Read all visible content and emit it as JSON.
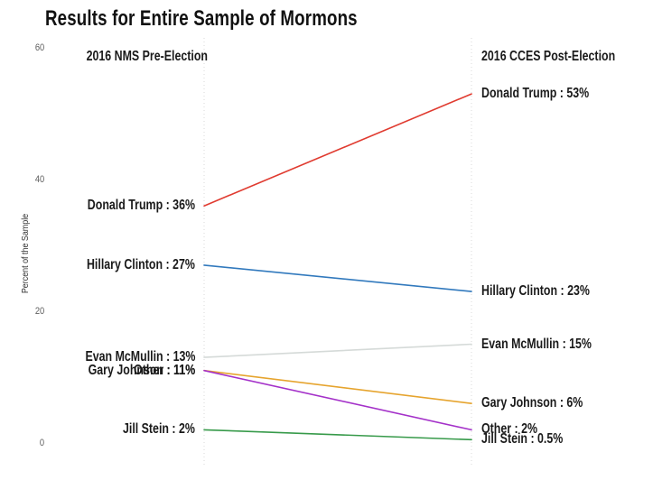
{
  "title": "Results for Entire Sample of Mormons",
  "columns": {
    "left_header": "2016 NMS Pre-Election",
    "right_header": "2016 CCES Post-Election"
  },
  "y_axis": {
    "label": "Percent of the Sample",
    "ticks": [
      0,
      20,
      40,
      60
    ]
  },
  "chart_data": {
    "type": "line",
    "subtype": "slopegraph",
    "title": "Results for Entire Sample of Mormons",
    "categories": [
      "2016 NMS Pre-Election",
      "2016 CCES Post-Election"
    ],
    "xlabel": "",
    "ylabel": "Percent of the Sample",
    "ylim": [
      0,
      60
    ],
    "yticks": [
      0,
      20,
      40,
      60
    ],
    "grid": false,
    "guide_lines": "dotted vertical line at each category column",
    "legend_position": "inline-labels",
    "series": [
      {
        "name": "Donald Trump",
        "color": "#e03b30",
        "values": [
          36,
          53
        ],
        "left_label": "Donald Trump : 36%",
        "right_label": "Donald Trump : 53%"
      },
      {
        "name": "Hillary Clinton",
        "color": "#3179bd",
        "values": [
          27,
          23
        ],
        "left_label": "Hillary Clinton : 27%",
        "right_label": "Hillary Clinton : 23%"
      },
      {
        "name": "Evan McMullin",
        "color": "#d5dad8",
        "values": [
          13,
          15
        ],
        "left_label": "Evan McMullin : 13%",
        "right_label": "Evan McMullin : 15%"
      },
      {
        "name": "Gary Johnson",
        "color": "#e6a42e",
        "values": [
          11,
          6
        ],
        "left_label": "Gary Johnson : 11%",
        "right_label": "Gary Johnson : 6%"
      },
      {
        "name": "Other",
        "color": "#a431c9",
        "values": [
          11,
          2
        ],
        "left_label": "Other : 11%",
        "right_label": "Other : 2%"
      },
      {
        "name": "Jill Stein",
        "color": "#379a4a",
        "values": [
          2,
          0.5
        ],
        "left_label": "Jill Stein : 2%",
        "right_label": "Jill Stein : 0.5%"
      }
    ]
  }
}
